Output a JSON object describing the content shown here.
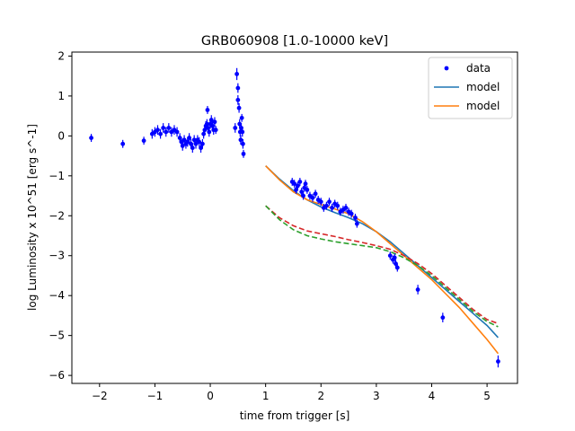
{
  "chart_data": {
    "type": "scatter",
    "title": "GRB060908 [1.0-10000 keV]",
    "xlabel": "time from trigger [s]",
    "ylabel": "log Luminosity x 10^51 [erg s^-1]",
    "xlim": [
      -2.5,
      5.55
    ],
    "ylim": [
      -6.2,
      2.1
    ],
    "xticks": [
      -2,
      -1,
      0,
      1,
      2,
      3,
      4,
      5
    ],
    "yticks": [
      -6,
      -5,
      -4,
      -3,
      -2,
      -1,
      0,
      1,
      2
    ],
    "grid": false,
    "legend_position": "top-right",
    "legend": [
      {
        "label": "data",
        "kind": "marker",
        "color": "#0000ff"
      },
      {
        "label": "model",
        "kind": "line",
        "color": "#1f77b4"
      },
      {
        "label": "model",
        "kind": "line",
        "color": "#ff7f0e"
      }
    ],
    "data_points": {
      "name": "data",
      "color": "#0000ff",
      "points": [
        [
          -2.15,
          -0.05,
          0.1
        ],
        [
          -1.58,
          -0.2,
          0.1
        ],
        [
          -1.2,
          -0.12,
          0.1
        ],
        [
          -1.05,
          0.05,
          0.12
        ],
        [
          -1.0,
          0.1,
          0.12
        ],
        [
          -0.95,
          0.15,
          0.12
        ],
        [
          -0.9,
          0.05,
          0.12
        ],
        [
          -0.85,
          0.2,
          0.12
        ],
        [
          -0.8,
          0.1,
          0.12
        ],
        [
          -0.75,
          0.2,
          0.12
        ],
        [
          -0.7,
          0.1,
          0.12
        ],
        [
          -0.65,
          0.15,
          0.12
        ],
        [
          -0.6,
          0.1,
          0.12
        ],
        [
          -0.55,
          -0.05,
          0.12
        ],
        [
          -0.52,
          -0.15,
          0.12
        ],
        [
          -0.5,
          -0.25,
          0.12
        ],
        [
          -0.47,
          -0.1,
          0.12
        ],
        [
          -0.44,
          -0.2,
          0.12
        ],
        [
          -0.41,
          -0.15,
          0.12
        ],
        [
          -0.38,
          -0.05,
          0.12
        ],
        [
          -0.35,
          -0.2,
          0.12
        ],
        [
          -0.32,
          -0.3,
          0.12
        ],
        [
          -0.29,
          -0.1,
          0.12
        ],
        [
          -0.26,
          -0.2,
          0.12
        ],
        [
          -0.23,
          -0.1,
          0.12
        ],
        [
          -0.2,
          -0.15,
          0.12
        ],
        [
          -0.17,
          -0.3,
          0.12
        ],
        [
          -0.14,
          -0.2,
          0.12
        ],
        [
          -0.12,
          0.05,
          0.12
        ],
        [
          -0.1,
          0.15,
          0.12
        ],
        [
          -0.08,
          0.25,
          0.12
        ],
        [
          -0.06,
          0.3,
          0.12
        ],
        [
          -0.05,
          0.65,
          0.1
        ],
        [
          -0.04,
          0.2,
          0.12
        ],
        [
          -0.02,
          0.1,
          0.12
        ],
        [
          0.0,
          0.3,
          0.12
        ],
        [
          0.02,
          0.4,
          0.12
        ],
        [
          0.04,
          0.25,
          0.12
        ],
        [
          0.06,
          0.15,
          0.12
        ],
        [
          0.08,
          0.35,
          0.12
        ],
        [
          0.1,
          0.15,
          0.1
        ],
        [
          0.45,
          0.2,
          0.12
        ],
        [
          0.48,
          1.55,
          0.15
        ],
        [
          0.5,
          1.2,
          0.12
        ],
        [
          0.5,
          0.9,
          0.12
        ],
        [
          0.52,
          0.7,
          0.12
        ],
        [
          0.53,
          0.3,
          0.12
        ],
        [
          0.54,
          0.1,
          0.12
        ],
        [
          0.55,
          -0.1,
          0.12
        ],
        [
          0.56,
          0.2,
          0.12
        ],
        [
          0.57,
          0.45,
          0.1
        ],
        [
          0.58,
          0.1,
          0.12
        ],
        [
          0.59,
          -0.2,
          0.12
        ],
        [
          0.6,
          -0.45,
          0.1
        ],
        [
          1.48,
          -1.15,
          0.1
        ],
        [
          1.52,
          -1.2,
          0.1
        ],
        [
          1.55,
          -1.35,
          0.1
        ],
        [
          1.58,
          -1.25,
          0.1
        ],
        [
          1.62,
          -1.15,
          0.1
        ],
        [
          1.65,
          -1.4,
          0.1
        ],
        [
          1.68,
          -1.5,
          0.1
        ],
        [
          1.7,
          -1.3,
          0.1
        ],
        [
          1.72,
          -1.2,
          0.1
        ],
        [
          1.75,
          -1.35,
          0.1
        ],
        [
          1.8,
          -1.5,
          0.1
        ],
        [
          1.85,
          -1.55,
          0.1
        ],
        [
          1.9,
          -1.45,
          0.1
        ],
        [
          1.95,
          -1.6,
          0.1
        ],
        [
          2.0,
          -1.65,
          0.1
        ],
        [
          2.05,
          -1.8,
          0.1
        ],
        [
          2.1,
          -1.75,
          0.1
        ],
        [
          2.15,
          -1.65,
          0.1
        ],
        [
          2.2,
          -1.8,
          0.1
        ],
        [
          2.25,
          -1.7,
          0.1
        ],
        [
          2.3,
          -1.75,
          0.1
        ],
        [
          2.35,
          -1.9,
          0.1
        ],
        [
          2.4,
          -1.85,
          0.1
        ],
        [
          2.45,
          -1.8,
          0.1
        ],
        [
          2.5,
          -1.9,
          0.1
        ],
        [
          2.55,
          -1.95,
          0.1
        ],
        [
          2.62,
          -2.05,
          0.1
        ],
        [
          2.65,
          -2.2,
          0.1
        ],
        [
          3.25,
          -3.0,
          0.1
        ],
        [
          3.3,
          -3.1,
          0.1
        ],
        [
          3.33,
          -3.05,
          0.1
        ],
        [
          3.35,
          -3.2,
          0.1
        ],
        [
          3.38,
          -3.3,
          0.1
        ],
        [
          3.75,
          -3.85,
          0.12
        ],
        [
          4.2,
          -4.55,
          0.12
        ],
        [
          5.2,
          -5.65,
          0.15
        ]
      ]
    },
    "series": [
      {
        "name": "model",
        "color": "#1f77b4",
        "dash": "solid",
        "x": [
          1.0,
          1.25,
          1.5,
          1.75,
          2.0,
          2.25,
          2.5,
          2.75,
          3.0,
          3.25,
          3.5,
          3.75,
          4.0,
          4.25,
          4.5,
          4.75,
          5.0,
          5.2
        ],
        "y": [
          -0.75,
          -1.08,
          -1.37,
          -1.6,
          -1.78,
          -1.92,
          -2.05,
          -2.2,
          -2.4,
          -2.65,
          -2.95,
          -3.25,
          -3.55,
          -3.85,
          -4.15,
          -4.45,
          -4.75,
          -5.05
        ]
      },
      {
        "name": "model",
        "color": "#ff7f0e",
        "dash": "solid",
        "x": [
          1.0,
          1.25,
          1.5,
          1.75,
          2.0,
          2.25,
          2.5,
          2.75,
          3.0,
          3.25,
          3.5,
          3.75,
          4.0,
          4.25,
          4.5,
          4.75,
          5.0,
          5.2
        ],
        "y": [
          -0.75,
          -1.1,
          -1.4,
          -1.6,
          -1.72,
          -1.83,
          -1.95,
          -2.15,
          -2.4,
          -2.7,
          -3.0,
          -3.3,
          -3.6,
          -3.95,
          -4.3,
          -4.7,
          -5.1,
          -5.45
        ]
      },
      {
        "color": "#d62728",
        "dash": "dashed",
        "x": [
          1.0,
          1.25,
          1.5,
          1.75,
          2.0,
          2.25,
          2.5,
          2.75,
          3.0,
          3.25,
          3.5,
          3.75,
          4.0,
          4.25,
          4.5,
          4.75,
          5.0,
          5.2
        ],
        "y": [
          -1.75,
          -2.05,
          -2.25,
          -2.38,
          -2.45,
          -2.52,
          -2.6,
          -2.67,
          -2.75,
          -2.84,
          -3.0,
          -3.2,
          -3.45,
          -3.75,
          -4.05,
          -4.35,
          -4.6,
          -4.7
        ]
      },
      {
        "color": "#2ca02c",
        "dash": "dashed",
        "x": [
          1.0,
          1.25,
          1.5,
          1.75,
          2.0,
          2.25,
          2.5,
          2.75,
          3.0,
          3.25,
          3.5,
          3.75,
          4.0,
          4.25,
          4.5,
          4.75,
          5.0,
          5.2
        ],
        "y": [
          -1.75,
          -2.1,
          -2.35,
          -2.5,
          -2.58,
          -2.65,
          -2.7,
          -2.75,
          -2.8,
          -2.9,
          -3.05,
          -3.25,
          -3.5,
          -3.8,
          -4.1,
          -4.4,
          -4.65,
          -4.78
        ]
      }
    ]
  }
}
